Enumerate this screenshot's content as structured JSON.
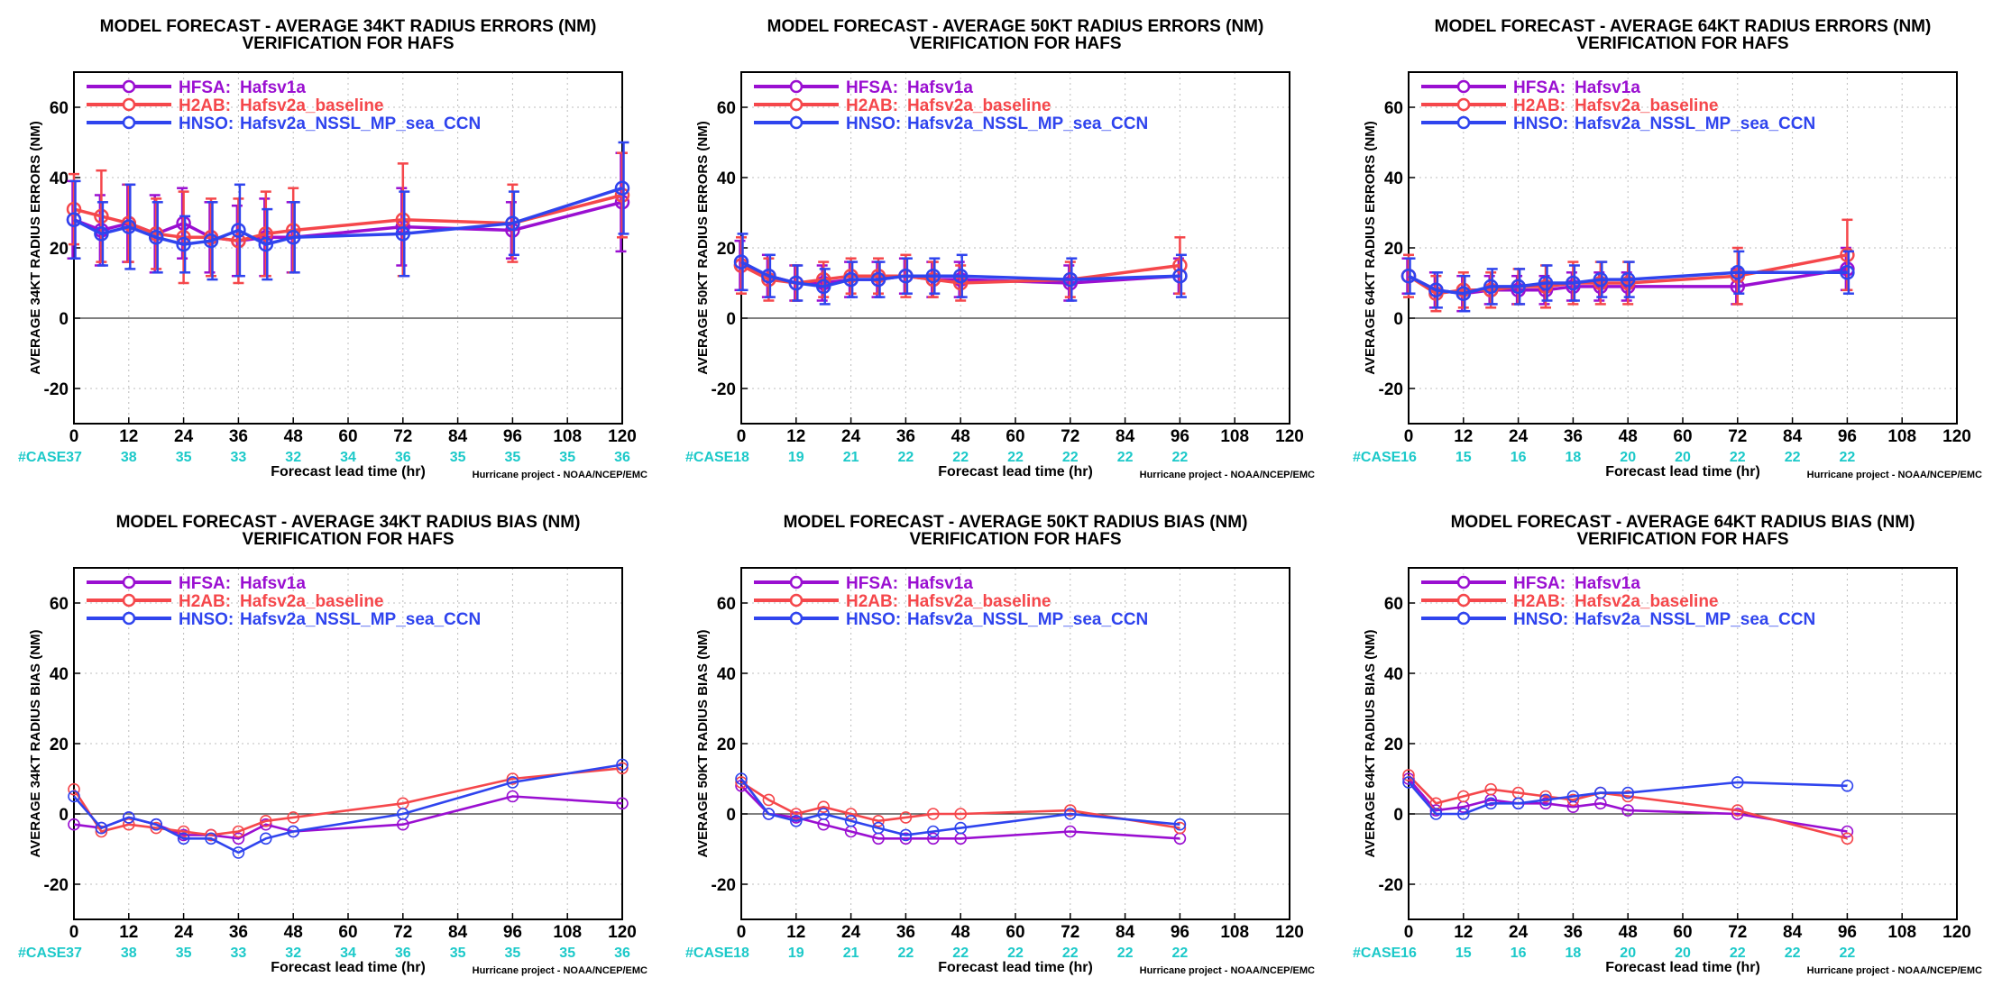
{
  "colors": {
    "HFSA": "#9a0fd1",
    "H2AB": "#f5474b",
    "HNSO": "#2f44ee",
    "case": "#1cc9c9",
    "axis": "#000000",
    "grid": "#bdbdbd"
  },
  "legend": [
    {
      "code": "HFSA:",
      "name": "Hafsv1a",
      "key": "HFSA"
    },
    {
      "code": "H2AB:",
      "name": "Hafsv2a_baseline",
      "key": "H2AB"
    },
    {
      "code": "HNSO:",
      "name": "Hafsv2a_NSSL_MP_sea_CCN",
      "key": "HNSO"
    }
  ],
  "common": {
    "xlabel": "Forecast lead time (hr)",
    "credit": "Hurricane project - NOAA/NCEP/EMC",
    "case_label": "#CASE",
    "subtitle": "VERIFICATION FOR HAFS"
  },
  "chart_data": [
    {
      "type": "line",
      "title": "MODEL FORECAST - AVERAGE 34KT RADIUS ERRORS (NM)",
      "subtitle": "VERIFICATION FOR HAFS",
      "ylabel": "AVERAGE 34KT RADIUS ERRORS (NM)",
      "xlim": [
        0,
        120
      ],
      "ylim": [
        -30,
        70
      ],
      "xticks": [
        0,
        12,
        24,
        36,
        48,
        60,
        72,
        84,
        96,
        108,
        120
      ],
      "yticks": [
        -20,
        0,
        20,
        40,
        60
      ],
      "grid": true,
      "legend_position": "top-left",
      "error_bars": true,
      "reference_line": 0,
      "case_x": [
        0,
        12,
        24,
        36,
        48,
        60,
        72,
        84,
        96,
        108,
        120
      ],
      "cases": [
        "37",
        "38",
        "35",
        "33",
        "32",
        "34",
        "36",
        "35",
        "35",
        "35",
        "36"
      ],
      "series": [
        {
          "key": "HFSA",
          "x": [
            0,
            6,
            12,
            18,
            24,
            30,
            36,
            42,
            48,
            72,
            96,
            120
          ],
          "y": [
            28,
            25,
            27,
            24,
            27,
            23,
            22,
            23,
            23,
            26,
            25,
            33
          ],
          "err": [
            11,
            10,
            11,
            11,
            10,
            10,
            10,
            11,
            10,
            11,
            8,
            14
          ]
        },
        {
          "key": "H2AB",
          "x": [
            0,
            6,
            12,
            18,
            24,
            30,
            36,
            42,
            48,
            72,
            96,
            120
          ],
          "y": [
            31,
            29,
            27,
            24,
            23,
            23,
            22,
            24,
            25,
            28,
            27,
            35
          ],
          "err": [
            10,
            13,
            11,
            10,
            13,
            11,
            12,
            12,
            12,
            16,
            11,
            12
          ]
        },
        {
          "key": "HNSO",
          "x": [
            0,
            6,
            12,
            18,
            24,
            30,
            36,
            42,
            48,
            72,
            96,
            120
          ],
          "y": [
            28,
            24,
            26,
            23,
            21,
            22,
            25,
            21,
            23,
            24,
            27,
            37
          ],
          "err": [
            11,
            9,
            12,
            10,
            8,
            11,
            13,
            10,
            10,
            12,
            9,
            13
          ]
        }
      ]
    },
    {
      "type": "line",
      "title": "MODEL FORECAST - AVERAGE 50KT RADIUS ERRORS (NM)",
      "subtitle": "VERIFICATION FOR HAFS",
      "ylabel": "AVERAGE 50KT RADIUS ERRORS (NM)",
      "xlim": [
        0,
        120
      ],
      "ylim": [
        -30,
        70
      ],
      "xticks": [
        0,
        12,
        24,
        36,
        48,
        60,
        72,
        84,
        96,
        108,
        120
      ],
      "yticks": [
        -20,
        0,
        20,
        40,
        60
      ],
      "grid": true,
      "legend_position": "top-left",
      "error_bars": true,
      "reference_line": 0,
      "case_x": [
        0,
        12,
        24,
        36,
        48,
        60,
        72,
        84,
        96
      ],
      "cases": [
        "18",
        "19",
        "21",
        "22",
        "22",
        "22",
        "22",
        "22",
        "22"
      ],
      "series": [
        {
          "key": "HFSA",
          "x": [
            0,
            6,
            12,
            18,
            24,
            30,
            36,
            42,
            48,
            72,
            96
          ],
          "y": [
            15,
            12,
            10,
            10,
            11,
            11,
            12,
            11,
            11,
            10,
            12
          ],
          "err": [
            7,
            6,
            5,
            5,
            5,
            5,
            5,
            5,
            5,
            5,
            5
          ]
        },
        {
          "key": "H2AB",
          "x": [
            0,
            6,
            12,
            18,
            24,
            30,
            36,
            42,
            48,
            72,
            96
          ],
          "y": [
            15,
            11,
            10,
            11,
            12,
            12,
            12,
            11,
            10,
            11,
            15
          ],
          "err": [
            8,
            6,
            5,
            5,
            5,
            5,
            6,
            5,
            5,
            5,
            8
          ]
        },
        {
          "key": "HNSO",
          "x": [
            0,
            6,
            12,
            18,
            24,
            30,
            36,
            42,
            48,
            72,
            96
          ],
          "y": [
            16,
            12,
            10,
            9,
            11,
            11,
            12,
            12,
            12,
            11,
            12
          ],
          "err": [
            8,
            6,
            5,
            5,
            5,
            5,
            5,
            5,
            6,
            6,
            6
          ]
        }
      ]
    },
    {
      "type": "line",
      "title": "MODEL FORECAST - AVERAGE 64KT RADIUS ERRORS (NM)",
      "subtitle": "VERIFICATION FOR HAFS",
      "ylabel": "AVERAGE 64KT RADIUS ERRORS (NM)",
      "xlim": [
        0,
        120
      ],
      "ylim": [
        -30,
        70
      ],
      "xticks": [
        0,
        12,
        24,
        36,
        48,
        60,
        72,
        84,
        96,
        108,
        120
      ],
      "yticks": [
        -20,
        0,
        20,
        40,
        60
      ],
      "grid": true,
      "legend_position": "top-left",
      "error_bars": true,
      "reference_line": 0,
      "case_x": [
        0,
        12,
        24,
        36,
        48,
        60,
        72,
        84,
        96
      ],
      "cases": [
        "16",
        "15",
        "16",
        "18",
        "20",
        "20",
        "22",
        "22",
        "22"
      ],
      "series": [
        {
          "key": "HFSA",
          "x": [
            0,
            6,
            12,
            18,
            24,
            30,
            36,
            42,
            48,
            72,
            96
          ],
          "y": [
            12,
            8,
            7,
            8,
            8,
            8,
            9,
            9,
            9,
            9,
            14
          ],
          "err": [
            5,
            5,
            5,
            4,
            4,
            4,
            4,
            4,
            4,
            5,
            6
          ]
        },
        {
          "key": "H2AB",
          "x": [
            0,
            6,
            12,
            18,
            24,
            30,
            36,
            42,
            48,
            72,
            96
          ],
          "y": [
            12,
            7,
            8,
            8,
            9,
            9,
            10,
            10,
            10,
            12,
            18
          ],
          "err": [
            6,
            5,
            5,
            5,
            5,
            6,
            6,
            6,
            6,
            8,
            10
          ]
        },
        {
          "key": "HNSO",
          "x": [
            0,
            6,
            12,
            18,
            24,
            30,
            36,
            42,
            48,
            72,
            96
          ],
          "y": [
            12,
            8,
            7,
            9,
            9,
            10,
            10,
            11,
            11,
            13,
            13
          ],
          "err": [
            5,
            5,
            5,
            5,
            5,
            5,
            5,
            5,
            5,
            6,
            6
          ]
        }
      ]
    },
    {
      "type": "line",
      "title": "MODEL FORECAST - AVERAGE 34KT RADIUS BIAS (NM)",
      "subtitle": "VERIFICATION FOR HAFS",
      "ylabel": "AVERAGE 34KT RADIUS BIAS (NM)",
      "xlim": [
        0,
        120
      ],
      "ylim": [
        -30,
        70
      ],
      "xticks": [
        0,
        12,
        24,
        36,
        48,
        60,
        72,
        84,
        96,
        108,
        120
      ],
      "yticks": [
        -20,
        0,
        20,
        40,
        60
      ],
      "grid": true,
      "legend_position": "top-left",
      "error_bars": false,
      "reference_line": 0,
      "case_x": [
        0,
        12,
        24,
        36,
        48,
        60,
        72,
        84,
        96,
        108,
        120
      ],
      "cases": [
        "37",
        "38",
        "35",
        "33",
        "32",
        "34",
        "36",
        "35",
        "35",
        "35",
        "36"
      ],
      "series": [
        {
          "key": "HFSA",
          "x": [
            0,
            6,
            12,
            18,
            24,
            30,
            36,
            42,
            48,
            72,
            96,
            120
          ],
          "y": [
            -3,
            -4,
            -1,
            -3,
            -6,
            -6,
            -7,
            -3,
            -5,
            -3,
            5,
            3
          ]
        },
        {
          "key": "H2AB",
          "x": [
            0,
            6,
            12,
            18,
            24,
            30,
            36,
            42,
            48,
            72,
            96,
            120
          ],
          "y": [
            7,
            -5,
            -3,
            -4,
            -5,
            -6,
            -5,
            -2,
            -1,
            3,
            10,
            13
          ]
        },
        {
          "key": "HNSO",
          "x": [
            0,
            6,
            12,
            18,
            24,
            30,
            36,
            42,
            48,
            72,
            96,
            120
          ],
          "y": [
            5,
            -4,
            -1,
            -3,
            -7,
            -7,
            -11,
            -7,
            -5,
            0,
            9,
            14
          ]
        }
      ]
    },
    {
      "type": "line",
      "title": "MODEL FORECAST - AVERAGE 50KT RADIUS BIAS (NM)",
      "subtitle": "VERIFICATION FOR HAFS",
      "ylabel": "AVERAGE 50KT RADIUS BIAS (NM)",
      "xlim": [
        0,
        120
      ],
      "ylim": [
        -30,
        70
      ],
      "xticks": [
        0,
        12,
        24,
        36,
        48,
        60,
        72,
        84,
        96,
        108,
        120
      ],
      "yticks": [
        -20,
        0,
        20,
        40,
        60
      ],
      "grid": true,
      "legend_position": "top-left",
      "error_bars": false,
      "reference_line": 0,
      "case_x": [
        0,
        12,
        24,
        36,
        48,
        60,
        72,
        84,
        96
      ],
      "cases": [
        "18",
        "19",
        "21",
        "22",
        "22",
        "22",
        "22",
        "22",
        "22"
      ],
      "series": [
        {
          "key": "HFSA",
          "x": [
            0,
            6,
            12,
            18,
            24,
            30,
            36,
            42,
            48,
            72,
            96
          ],
          "y": [
            8,
            0,
            -1,
            -3,
            -5,
            -7,
            -7,
            -7,
            -7,
            -5,
            -7
          ]
        },
        {
          "key": "H2AB",
          "x": [
            0,
            6,
            12,
            18,
            24,
            30,
            36,
            42,
            48,
            72,
            96
          ],
          "y": [
            9,
            4,
            0,
            2,
            0,
            -2,
            -1,
            0,
            0,
            1,
            -4
          ]
        },
        {
          "key": "HNSO",
          "x": [
            0,
            6,
            12,
            18,
            24,
            30,
            36,
            42,
            48,
            72,
            96
          ],
          "y": [
            10,
            0,
            -2,
            0,
            -2,
            -4,
            -6,
            -5,
            -4,
            0,
            -3
          ]
        }
      ]
    },
    {
      "type": "line",
      "title": "MODEL FORECAST - AVERAGE 64KT RADIUS BIAS (NM)",
      "subtitle": "VERIFICATION FOR HAFS",
      "ylabel": "AVERAGE 64KT RADIUS BIAS (NM)",
      "xlim": [
        0,
        120
      ],
      "ylim": [
        -30,
        70
      ],
      "xticks": [
        0,
        12,
        24,
        36,
        48,
        60,
        72,
        84,
        96,
        108,
        120
      ],
      "yticks": [
        -20,
        0,
        20,
        40,
        60
      ],
      "grid": true,
      "legend_position": "top-left",
      "error_bars": false,
      "reference_line": 0,
      "case_x": [
        0,
        12,
        24,
        36,
        48,
        60,
        72,
        84,
        96
      ],
      "cases": [
        "16",
        "15",
        "16",
        "18",
        "20",
        "20",
        "22",
        "22",
        "22"
      ],
      "series": [
        {
          "key": "HFSA",
          "x": [
            0,
            6,
            12,
            18,
            24,
            30,
            36,
            42,
            48,
            72,
            96
          ],
          "y": [
            10,
            1,
            2,
            4,
            3,
            3,
            2,
            3,
            1,
            0,
            -5
          ]
        },
        {
          "key": "H2AB",
          "x": [
            0,
            6,
            12,
            18,
            24,
            30,
            36,
            42,
            48,
            72,
            96
          ],
          "y": [
            11,
            3,
            5,
            7,
            6,
            5,
            4,
            6,
            5,
            1,
            -7
          ]
        },
        {
          "key": "HNSO",
          "x": [
            0,
            6,
            12,
            18,
            24,
            30,
            36,
            42,
            48,
            72,
            96
          ],
          "y": [
            9,
            0,
            0,
            3,
            3,
            4,
            5,
            6,
            6,
            9,
            8
          ]
        }
      ]
    }
  ]
}
